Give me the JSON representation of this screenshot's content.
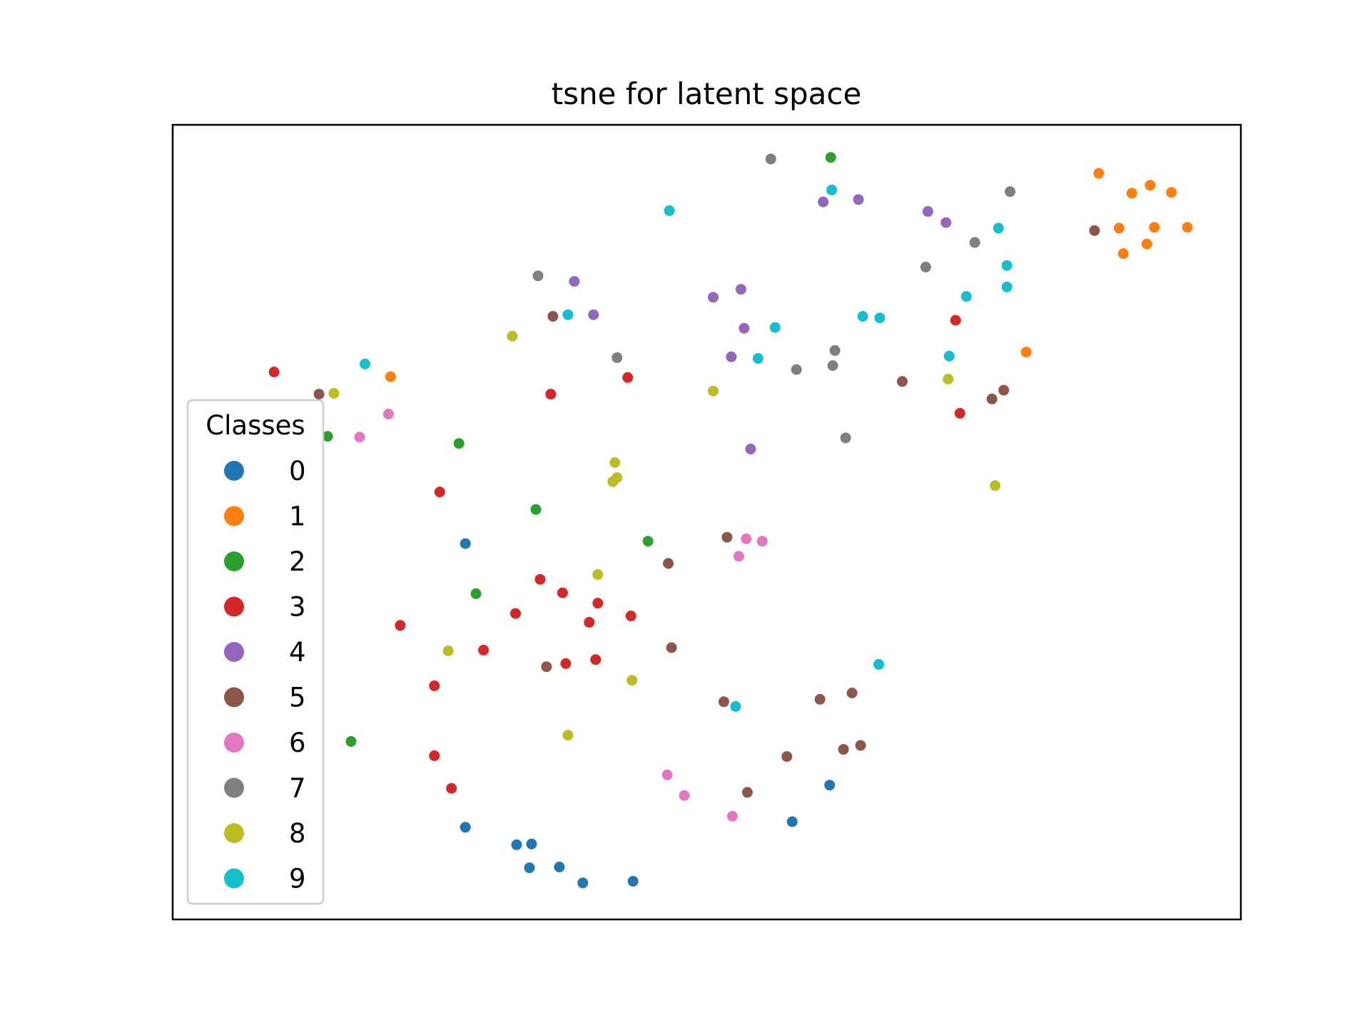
{
  "chart_data": {
    "type": "scatter",
    "title": "tsne for latent space",
    "xlabel": "",
    "ylabel": "",
    "xlim": [
      0,
      100
    ],
    "ylim": [
      0,
      100
    ],
    "x_ticks_visible": false,
    "y_ticks_visible": false,
    "grid": false,
    "legend": {
      "title": "Classes",
      "placement": "lower-left",
      "entries": [
        "0",
        "1",
        "2",
        "3",
        "4",
        "5",
        "6",
        "7",
        "8",
        "9"
      ]
    },
    "series": [
      {
        "name": "0",
        "color": "#1f77b4",
        "points": [
          [
            27.4,
            47.3
          ],
          [
            27.4,
            11.6
          ],
          [
            32.2,
            9.4
          ],
          [
            33.6,
            9.5
          ],
          [
            33.4,
            6.5
          ],
          [
            36.2,
            6.6
          ],
          [
            38.4,
            4.6
          ],
          [
            43.1,
            4.8
          ],
          [
            58.0,
            12.3
          ],
          [
            61.5,
            16.9
          ]
        ]
      },
      {
        "name": "1",
        "color": "#ff7f0e",
        "points": [
          [
            86.7,
            93.9
          ],
          [
            89.8,
            91.4
          ],
          [
            91.5,
            92.4
          ],
          [
            93.5,
            91.5
          ],
          [
            88.6,
            87.0
          ],
          [
            91.9,
            87.1
          ],
          [
            95.0,
            87.1
          ],
          [
            89.0,
            83.8
          ],
          [
            91.2,
            85.0
          ],
          [
            79.9,
            71.4
          ],
          [
            20.4,
            68.3
          ]
        ]
      },
      {
        "name": "2",
        "color": "#2ca02c",
        "points": [
          [
            61.6,
            95.9
          ],
          [
            14.5,
            60.8
          ],
          [
            26.8,
            59.9
          ],
          [
            34.0,
            51.6
          ],
          [
            44.5,
            47.6
          ],
          [
            28.4,
            41.0
          ],
          [
            16.7,
            22.4
          ]
        ]
      },
      {
        "name": "3",
        "color": "#d62728",
        "points": [
          [
            9.5,
            68.9
          ],
          [
            42.6,
            68.2
          ],
          [
            35.4,
            66.1
          ],
          [
            25.0,
            53.8
          ],
          [
            73.3,
            75.4
          ],
          [
            73.7,
            63.7
          ],
          [
            34.4,
            42.8
          ],
          [
            36.5,
            41.1
          ],
          [
            39.8,
            39.8
          ],
          [
            32.1,
            38.5
          ],
          [
            39.0,
            37.4
          ],
          [
            42.9,
            38.2
          ],
          [
            21.3,
            37.0
          ],
          [
            29.1,
            33.9
          ],
          [
            39.6,
            32.7
          ],
          [
            36.8,
            32.2
          ],
          [
            24.5,
            29.4
          ],
          [
            24.5,
            20.6
          ],
          [
            26.1,
            16.5
          ]
        ]
      },
      {
        "name": "4",
        "color": "#9467bd",
        "points": [
          [
            60.9,
            90.3
          ],
          [
            64.2,
            90.6
          ],
          [
            70.7,
            89.1
          ],
          [
            72.4,
            87.7
          ],
          [
            37.6,
            80.3
          ],
          [
            39.4,
            76.1
          ],
          [
            50.6,
            78.3
          ],
          [
            53.2,
            79.3
          ],
          [
            53.5,
            74.4
          ],
          [
            52.3,
            70.8
          ],
          [
            54.1,
            59.2
          ]
        ]
      },
      {
        "name": "5",
        "color": "#8c564b",
        "points": [
          [
            86.3,
            86.7
          ],
          [
            35.6,
            75.9
          ],
          [
            13.7,
            66.1
          ],
          [
            68.3,
            67.7
          ],
          [
            76.7,
            65.5
          ],
          [
            77.8,
            66.6
          ],
          [
            51.9,
            48.1
          ],
          [
            46.4,
            44.8
          ],
          [
            46.7,
            34.2
          ],
          [
            35.0,
            31.8
          ],
          [
            51.6,
            27.4
          ],
          [
            60.6,
            27.7
          ],
          [
            63.6,
            28.5
          ],
          [
            57.5,
            20.5
          ],
          [
            62.8,
            21.4
          ],
          [
            64.4,
            21.9
          ],
          [
            53.8,
            16.0
          ]
        ]
      },
      {
        "name": "6",
        "color": "#e377c2",
        "points": [
          [
            20.2,
            63.6
          ],
          [
            17.5,
            60.7
          ],
          [
            53.7,
            47.9
          ],
          [
            55.2,
            47.6
          ],
          [
            53.0,
            45.7
          ],
          [
            46.3,
            18.2
          ],
          [
            47.9,
            15.6
          ],
          [
            52.4,
            13.0
          ]
        ]
      },
      {
        "name": "7",
        "color": "#7f7f7f",
        "points": [
          [
            56.0,
            95.7
          ],
          [
            78.4,
            91.6
          ],
          [
            75.1,
            85.2
          ],
          [
            70.5,
            82.1
          ],
          [
            34.2,
            81.0
          ],
          [
            41.6,
            70.7
          ],
          [
            62.0,
            71.6
          ],
          [
            61.8,
            69.7
          ],
          [
            58.4,
            69.2
          ],
          [
            63.0,
            60.6
          ]
        ]
      },
      {
        "name": "8",
        "color": "#bcbd22",
        "points": [
          [
            31.8,
            73.4
          ],
          [
            15.1,
            66.2
          ],
          [
            50.6,
            66.5
          ],
          [
            72.6,
            68.0
          ],
          [
            41.4,
            57.5
          ],
          [
            41.6,
            55.6
          ],
          [
            41.2,
            55.1
          ],
          [
            77.0,
            54.6
          ],
          [
            39.8,
            43.4
          ],
          [
            25.8,
            33.8
          ],
          [
            43.0,
            30.1
          ],
          [
            37.0,
            23.2
          ]
        ]
      },
      {
        "name": "9",
        "color": "#17becf",
        "points": [
          [
            61.7,
            91.8
          ],
          [
            46.5,
            89.2
          ],
          [
            77.3,
            87.0
          ],
          [
            78.1,
            82.3
          ],
          [
            78.1,
            79.6
          ],
          [
            74.3,
            78.4
          ],
          [
            64.6,
            75.9
          ],
          [
            66.2,
            75.7
          ],
          [
            37.0,
            76.1
          ],
          [
            56.4,
            74.5
          ],
          [
            18.0,
            69.9
          ],
          [
            72.7,
            70.9
          ],
          [
            54.8,
            70.6
          ],
          [
            66.1,
            32.1
          ],
          [
            52.7,
            26.8
          ]
        ]
      }
    ]
  }
}
